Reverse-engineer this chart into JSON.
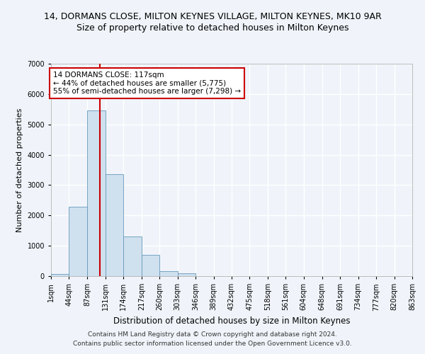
{
  "title_main": "14, DORMANS CLOSE, MILTON KEYNES VILLAGE, MILTON KEYNES, MK10 9AR",
  "title_sub": "Size of property relative to detached houses in Milton Keynes",
  "xlabel": "Distribution of detached houses by size in Milton Keynes",
  "ylabel": "Number of detached properties",
  "bin_edges": [
    1,
    44,
    87,
    131,
    174,
    217,
    260,
    303,
    346,
    389,
    432,
    475,
    518,
    561,
    604,
    648,
    691,
    734,
    777,
    820,
    863
  ],
  "bar_heights": [
    75,
    2280,
    5450,
    3350,
    1300,
    700,
    160,
    100,
    0,
    0,
    0,
    0,
    0,
    0,
    0,
    0,
    0,
    0,
    0,
    0
  ],
  "bar_color": "#cfe0ef",
  "bar_edge_color": "#6699bb",
  "vline_x": 117,
  "vline_color": "#cc0000",
  "ylim": [
    0,
    7000
  ],
  "yticks": [
    0,
    1000,
    2000,
    3000,
    4000,
    5000,
    6000,
    7000
  ],
  "annotation_text": "14 DORMANS CLOSE: 117sqm\n← 44% of detached houses are smaller (5,775)\n55% of semi-detached houses are larger (7,298) →",
  "annotation_box_color": "white",
  "annotation_box_edge": "#cc0000",
  "footer_line1": "Contains HM Land Registry data © Crown copyright and database right 2024.",
  "footer_line2": "Contains public sector information licensed under the Open Government Licence v3.0.",
  "bg_color": "#f0f4fa",
  "plot_bg_color": "#f0f4fa",
  "grid_color": "white",
  "title_fontsize": 9,
  "subtitle_fontsize": 9,
  "tick_label_fontsize": 7,
  "ylabel_fontsize": 8,
  "xlabel_fontsize": 8.5,
  "footer_fontsize": 6.5,
  "annotation_fontsize": 7.5
}
